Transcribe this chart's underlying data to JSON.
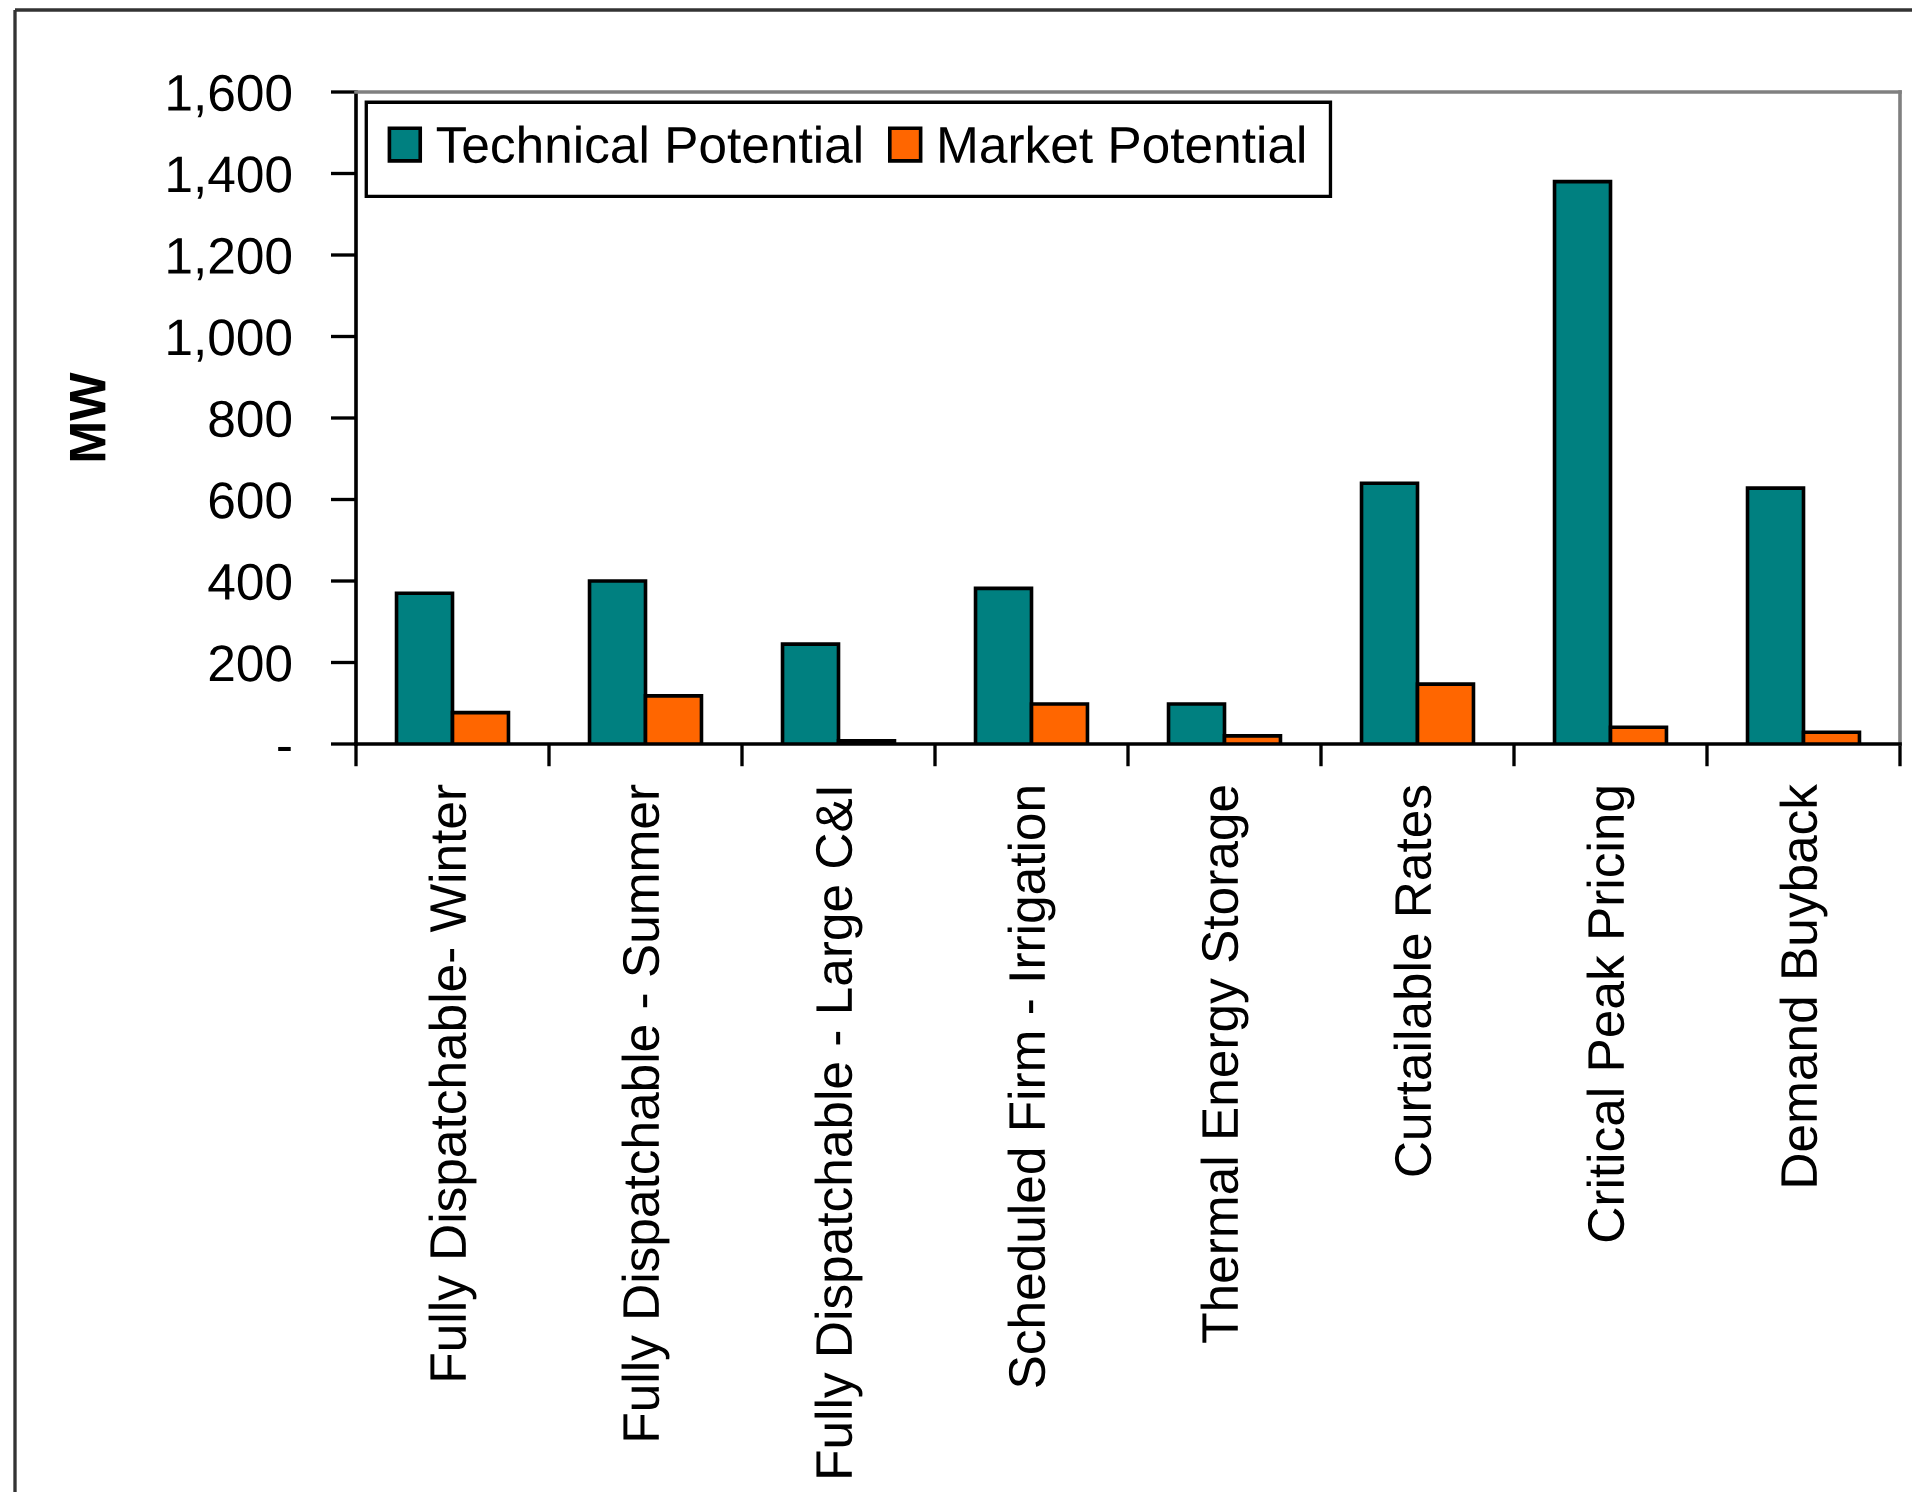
{
  "chart_data": {
    "type": "bar",
    "ylabel": "MW",
    "categories": [
      "Fully Dispatchable- Winter",
      "Fully Dispatchable - Summer",
      "Fully Dispatchable - Large C&I",
      "Scheduled Firm - Irrigation",
      "Thermal Energy Storage",
      "Curtailable Rates",
      "Critical Peak Pricing",
      "Demand Buyback"
    ],
    "series": [
      {
        "name": "Technical Potential",
        "color": "#008080",
        "values": [
          370,
          400,
          245,
          382,
          98,
          640,
          1380,
          628
        ]
      },
      {
        "name": "Market Potential",
        "color": "#ff6600",
        "values": [
          77,
          118,
          8,
          98,
          20,
          147,
          41,
          29
        ]
      }
    ],
    "ylim": [
      0,
      1600
    ],
    "yticks": [
      {
        "value": 0,
        "label": "-"
      },
      200,
      400,
      600,
      800,
      {
        "value": 1000,
        "label": "1,000"
      },
      {
        "value": 1200,
        "label": "1,200"
      },
      {
        "value": 1400,
        "label": "1,400"
      },
      {
        "value": 1600,
        "label": "1,600"
      }
    ],
    "legend": "top left"
  }
}
